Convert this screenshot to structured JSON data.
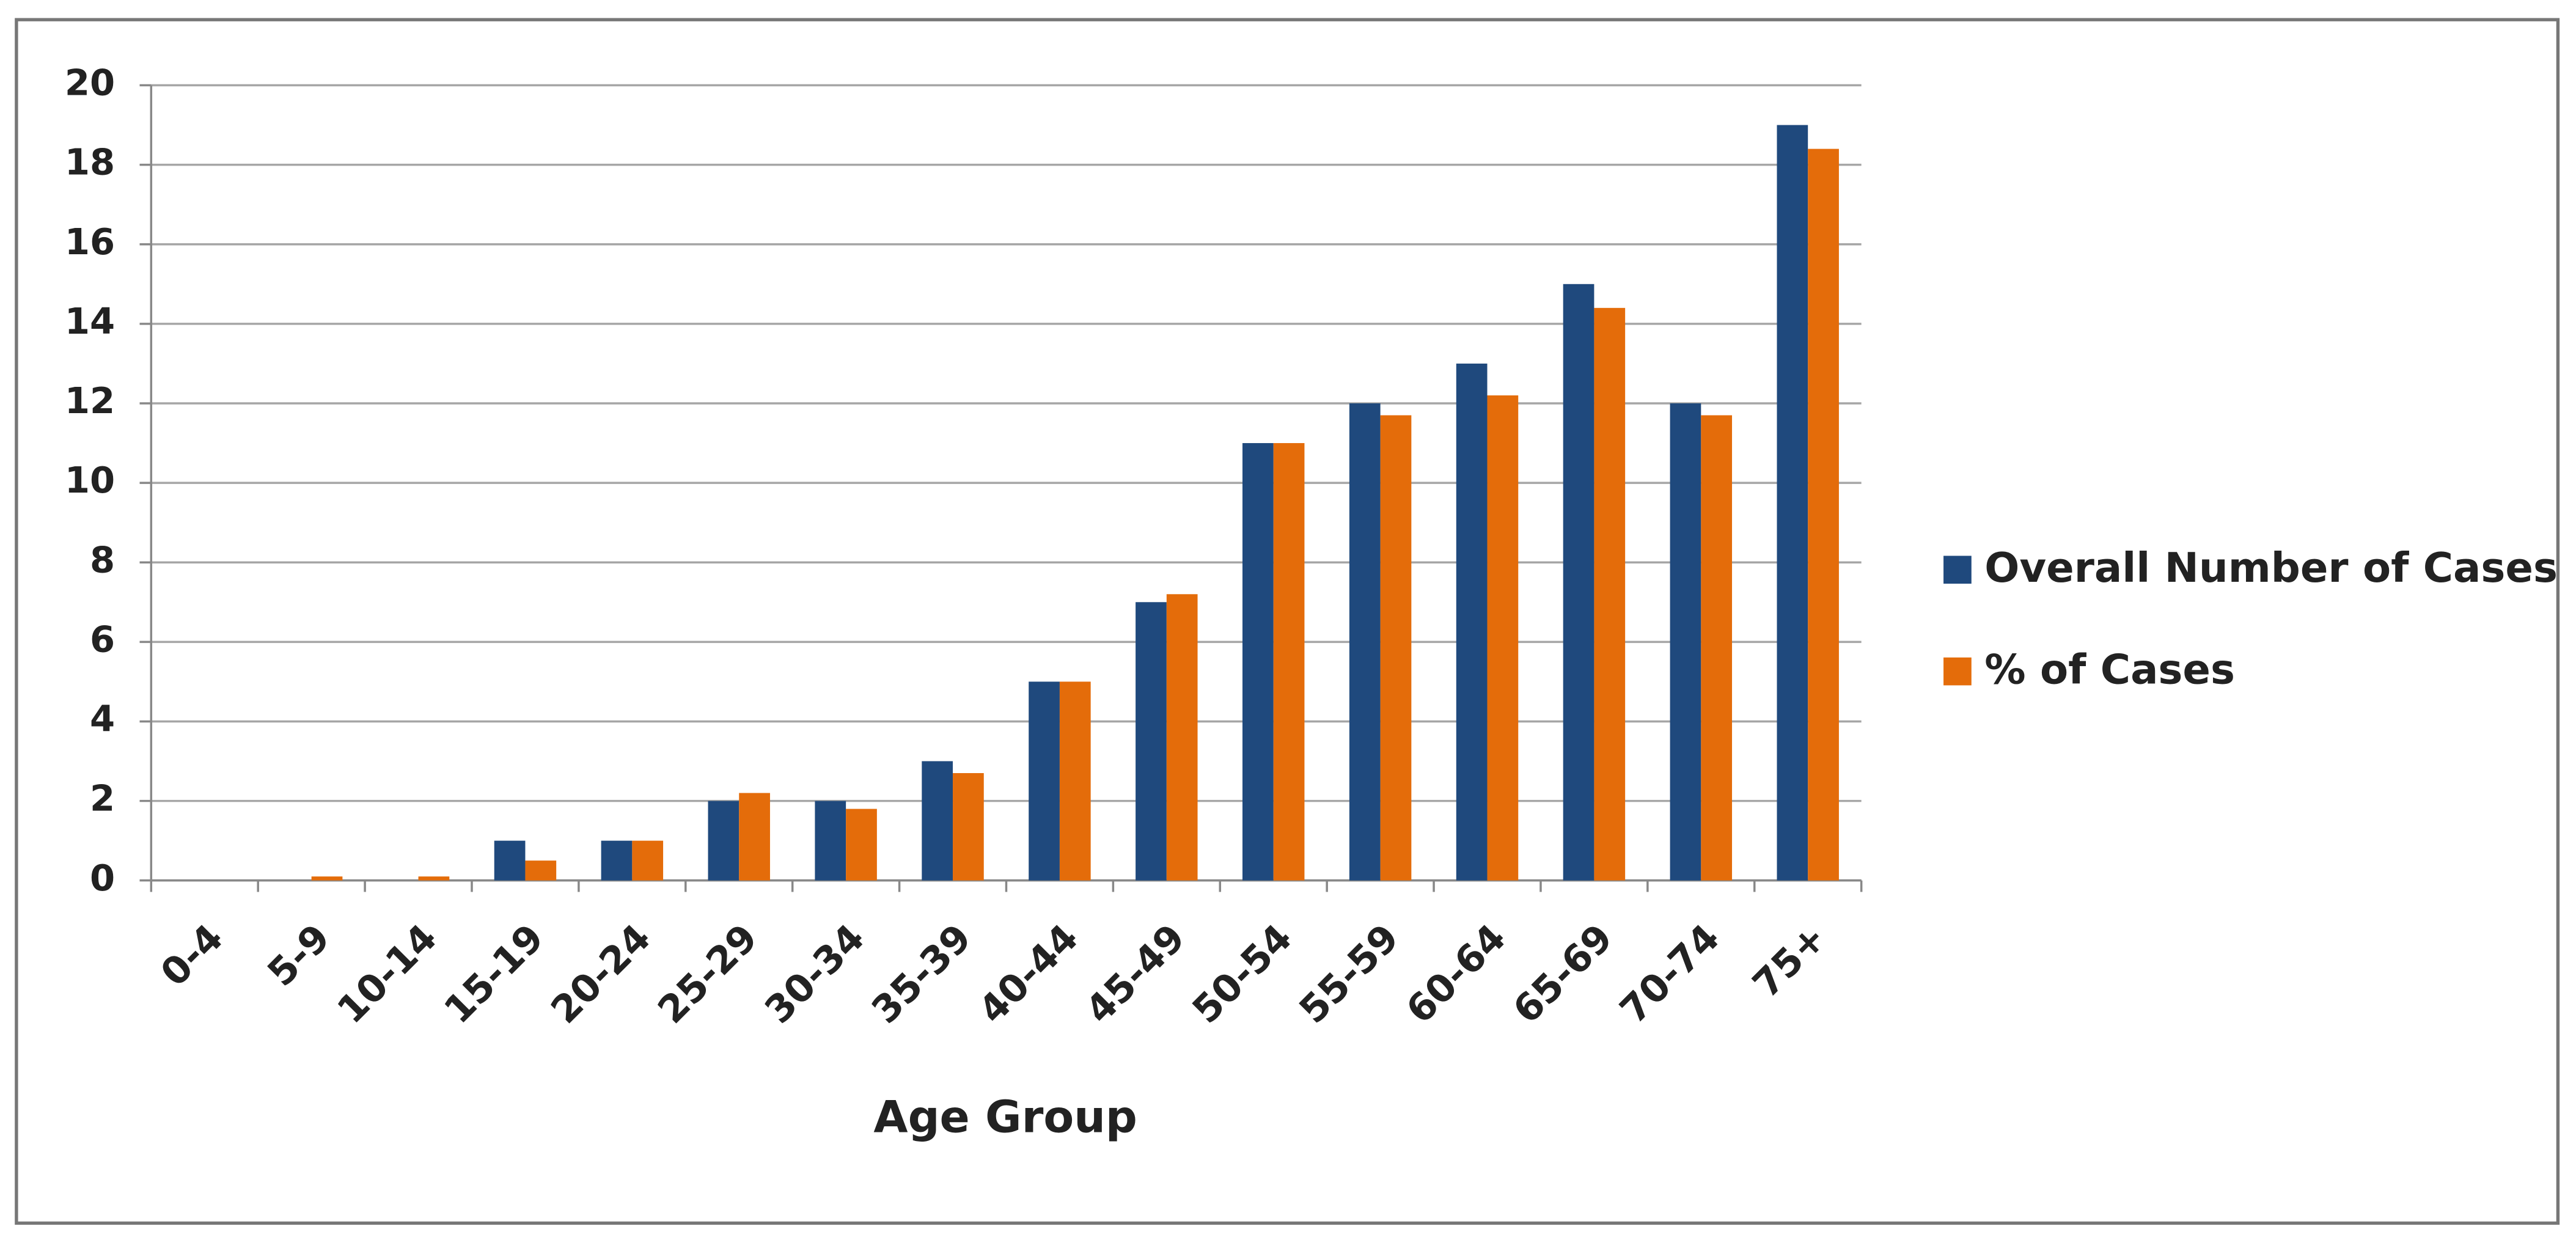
{
  "chart_data": {
    "type": "bar",
    "x_label": "Age Group",
    "categories": [
      "0-4",
      "5-9",
      "10-14",
      "15-19",
      "20-24",
      "25-29",
      "30-34",
      "35-39",
      "40-44",
      "45-49",
      "50-54",
      "55-59",
      "60-64",
      "65-69",
      "70-74",
      "75+"
    ],
    "series": [
      {
        "name": "Overall Number of Cases",
        "color": "#1f497d",
        "values": [
          0,
          0,
          0,
          1,
          1,
          2,
          2,
          3,
          5,
          7,
          11,
          12,
          13,
          15,
          12,
          19
        ]
      },
      {
        "name": "% of Cases",
        "color": "#e46c0a",
        "values": [
          0,
          0.1,
          0.1,
          0.5,
          1,
          2.2,
          1.8,
          2.7,
          5,
          7.2,
          11,
          11.7,
          12.2,
          14.4,
          11.7,
          18.4
        ]
      }
    ],
    "ylim": [
      0,
      20
    ],
    "yticks": [
      0,
      2,
      4,
      6,
      8,
      10,
      12,
      14,
      16,
      18,
      20
    ],
    "grid": true,
    "legend": "right"
  }
}
